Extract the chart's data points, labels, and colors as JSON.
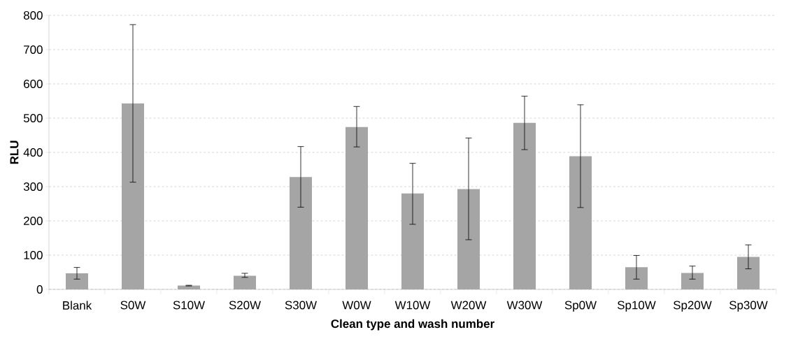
{
  "chart_data": {
    "type": "bar",
    "xlabel": "Clean type and wash number",
    "ylabel": "RLU",
    "categories": [
      "Blank",
      "S0W",
      "S10W",
      "S20W",
      "S30W",
      "W0W",
      "W10W",
      "W20W",
      "W30W",
      "Sp0W",
      "Sp10W",
      "Sp20W",
      "Sp30W"
    ],
    "values": [
      47,
      543,
      11,
      40,
      328,
      474,
      280,
      293,
      486,
      389,
      65,
      48,
      95
    ],
    "errors": [
      [
        30,
        64
      ],
      [
        313,
        773
      ],
      [
        10,
        12
      ],
      [
        35,
        47
      ],
      [
        240,
        417
      ],
      [
        416,
        534
      ],
      [
        190,
        368
      ],
      [
        145,
        442
      ],
      [
        408,
        564
      ],
      [
        239,
        539
      ],
      [
        30,
        99
      ],
      [
        30,
        68
      ],
      [
        60,
        130
      ]
    ],
    "color": "#a5a5a5",
    "ylim": [
      0,
      800
    ],
    "yticks": [
      0,
      100,
      200,
      300,
      400,
      500,
      600,
      700,
      800
    ],
    "grid": "y"
  }
}
